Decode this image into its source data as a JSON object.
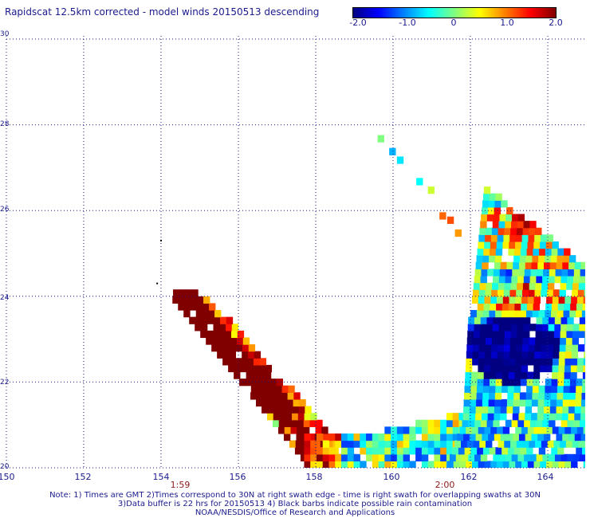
{
  "title": "Rapidscat 12.5km corrected - model winds 20150513 descending",
  "colorbar": {
    "ticks": [
      "-2.0",
      "-1.0",
      "0",
      "1.0",
      "2.0"
    ],
    "tick_values": [
      -2.0,
      -1.0,
      0,
      1.0,
      2.0
    ],
    "colors": [
      "#000080",
      "#0000ff",
      "#0080ff",
      "#00ffff",
      "#80ff80",
      "#ffff00",
      "#ff8000",
      "#ff0000",
      "#800000"
    ]
  },
  "axes": {
    "lon_labels": [
      "150",
      "152",
      "154",
      "156",
      "158",
      "160",
      "162",
      "164"
    ],
    "lon_values": [
      150,
      152,
      154,
      156,
      158,
      160,
      162,
      164
    ],
    "lat_labels": [
      "20",
      "22",
      "24",
      "26",
      "28",
      "30"
    ],
    "lat_values": [
      20,
      22,
      24,
      26,
      28,
      30
    ],
    "lon_range": [
      150,
      165
    ],
    "lat_range": [
      20,
      30
    ],
    "grid": true,
    "grid_style": "dotted"
  },
  "times": [
    {
      "label": "1:59",
      "lon": 154.6
    },
    {
      "label": "2:00",
      "lon": 161.4
    }
  ],
  "notes": [
    "Note: 1) Times are GMT 2)Times correspond to 30N at right swath edge - time is right swath for overlapping swaths at 30N",
    "3)Data buffer is 22 hrs for 20150513 4) Black barbs indicate possible rain contamination",
    "NOAA/NESDIS/Office of Research and Applications"
  ],
  "map_data": {
    "type": "gridded wind speed difference (corrected minus model), m/s",
    "cell_size_deg": 0.16,
    "regions": [
      {
        "name": "western-swath",
        "description": "diagonal swath from ~154E,24N to ~158.5E,20N, mostly values near +2.0",
        "approx_value": 2.0
      },
      {
        "name": "southern-arc",
        "description": "arc along 20-21N from 158E to 162E, mixed values -1 to +1"
      },
      {
        "name": "eastern-swath",
        "description": "broad swath from 161.5E to 165E, 20-26.5N, strong negative core (~-2.0) near 163E 22.5-23N"
      },
      {
        "name": "isolated-cells",
        "description": "scattered cells 159.5-161.5E, 25.5-27.7N"
      }
    ],
    "isolated_cells": [
      {
        "lon": 159.6,
        "lat": 27.6,
        "value": 0.0
      },
      {
        "lon": 159.9,
        "lat": 27.3,
        "value": -0.8
      },
      {
        "lon": 160.1,
        "lat": 27.1,
        "value": -0.6
      },
      {
        "lon": 160.6,
        "lat": 26.6,
        "value": -0.5
      },
      {
        "lon": 160.9,
        "lat": 26.4,
        "value": 0.3
      },
      {
        "lon": 161.2,
        "lat": 25.8,
        "value": 1.1
      },
      {
        "lon": 161.4,
        "lat": 25.7,
        "value": 1.2
      },
      {
        "lon": 161.6,
        "lat": 25.4,
        "value": 0.9
      }
    ]
  }
}
